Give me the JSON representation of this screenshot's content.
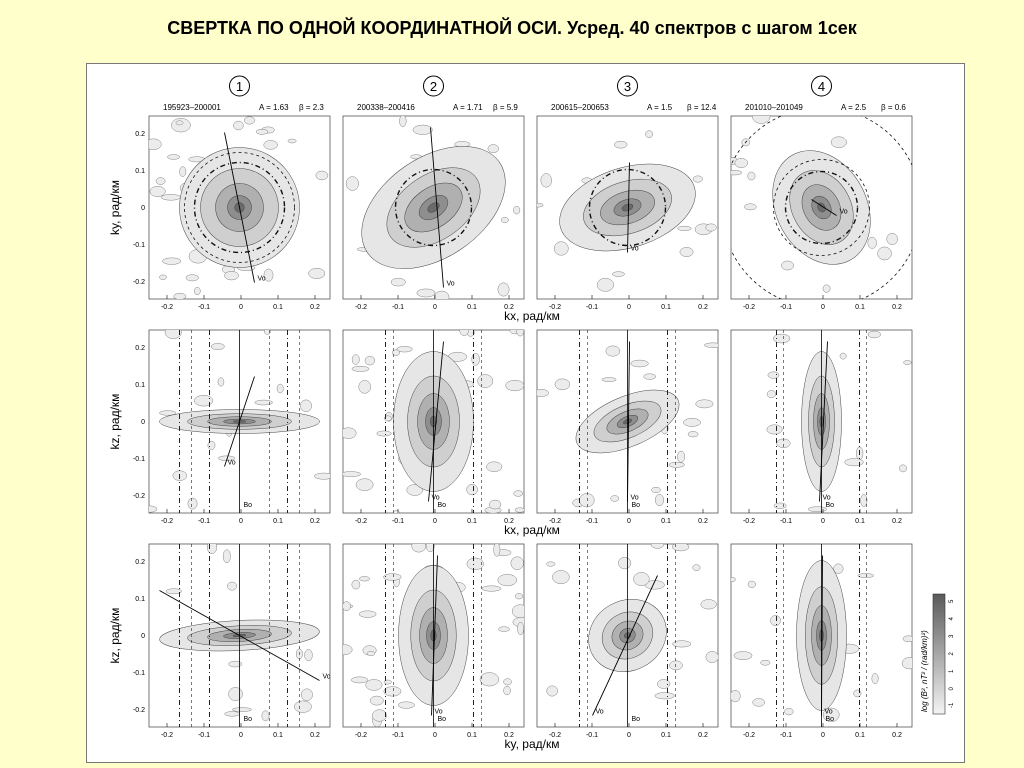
{
  "slide": {
    "title": "СВЕРТКА  ПО ОДНОЙ  КООРДИНАТНОЙ  ОСИ.    Усред. 40 спектров с шагом 1сек"
  },
  "figure": {
    "columns": [
      {
        "number": "1",
        "label": "195923–200001",
        "A": "A = 1.63",
        "beta": "β = 2.3"
      },
      {
        "number": "2",
        "label": "200338–200416",
        "A": "A = 1.71",
        "beta": "β = 5.9"
      },
      {
        "number": "3",
        "label": "200615–200653",
        "A": "A = 1.5",
        "beta": "β = 12.4"
      },
      {
        "number": "4",
        "label": "201010–201049",
        "A": "A = 2.5",
        "beta": "β = 0.6"
      }
    ],
    "rows": [
      {
        "ylabel": "ky, рад/км",
        "xlabel": "kx, рад/км"
      },
      {
        "ylabel": "kz, рад/км",
        "xlabel": "kx, рад/км"
      },
      {
        "ylabel": "kz, рад/км",
        "xlabel": "ky, рад/км"
      }
    ],
    "x_ticks": [
      "-0.2",
      "-0.1",
      "0",
      "0.1",
      "0.2"
    ],
    "y_ticks": [
      "0.2",
      "0.1",
      "0",
      "-0.1",
      "-0.2"
    ],
    "vector_labels": {
      "v0": "Vo",
      "b0": "Bo"
    },
    "colorbar": {
      "label": "log (B², nT² / (rad/km)²)",
      "ticks": [
        "-1",
        "0",
        "1",
        "2",
        "3",
        "4",
        "5"
      ]
    }
  }
}
